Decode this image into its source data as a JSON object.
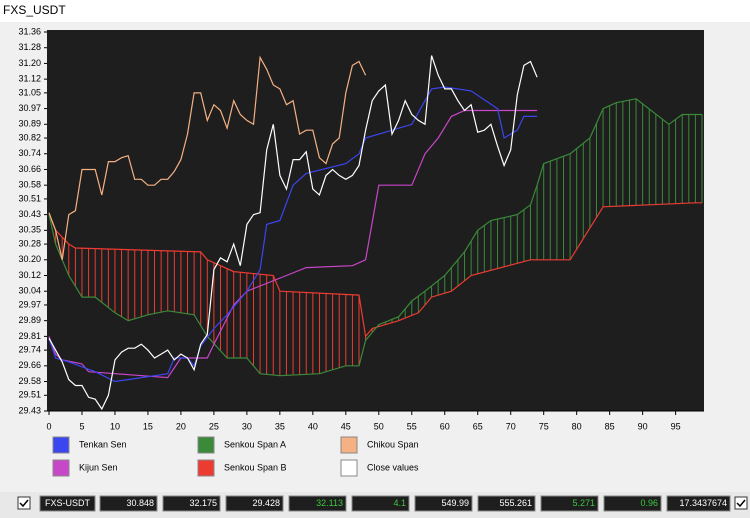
{
  "title": "FXS_USDT",
  "chart_data": {
    "type": "line",
    "ylim": [
      29.43,
      31.36
    ],
    "yticks": [
      {
        "value": 29.43,
        "label": "29.43"
      },
      {
        "value": 29.51,
        "label": "29.51"
      },
      {
        "value": 29.58,
        "label": "29.58"
      },
      {
        "value": 29.66,
        "label": "29.66"
      },
      {
        "value": 29.74,
        "label": "29.74"
      },
      {
        "value": 29.81,
        "label": "29.81"
      },
      {
        "value": 29.89,
        "label": "29.89"
      },
      {
        "value": 29.97,
        "label": "29.97"
      },
      {
        "value": 30.04,
        "label": "30.04"
      },
      {
        "value": 30.12,
        "label": "30.12"
      },
      {
        "value": 30.2,
        "label": "30.20"
      },
      {
        "value": 30.28,
        "label": "30.28"
      },
      {
        "value": 30.35,
        "label": "30.35"
      },
      {
        "value": 30.43,
        "label": "30.43"
      },
      {
        "value": 30.51,
        "label": "30.51"
      },
      {
        "value": 30.58,
        "label": "30.58"
      },
      {
        "value": 30.66,
        "label": "30.66"
      },
      {
        "value": 30.74,
        "label": "30.74"
      },
      {
        "value": 30.82,
        "label": "30.82"
      },
      {
        "value": 30.89,
        "label": "30.89"
      },
      {
        "value": 30.97,
        "label": "30.97"
      },
      {
        "value": 31.05,
        "label": "31.05"
      },
      {
        "value": 31.12,
        "label": "31.12"
      },
      {
        "value": 31.2,
        "label": "31.20"
      },
      {
        "value": 31.28,
        "label": "31.28"
      },
      {
        "value": 31.36,
        "label": "31.36"
      }
    ],
    "xlim": [
      0,
      99
    ],
    "xticks": [
      0,
      5,
      10,
      15,
      20,
      25,
      30,
      35,
      40,
      45,
      50,
      55,
      60,
      65,
      70,
      75,
      80,
      85,
      90,
      95
    ],
    "series": [
      {
        "name": "Tenkan Sen",
        "color": "#3a46f0",
        "x": [
          0,
          1,
          3,
          7,
          10,
          12,
          18,
          19,
          21,
          22,
          23,
          25,
          27,
          30,
          32,
          33,
          35,
          37,
          39,
          45,
          47,
          48,
          52,
          55,
          58,
          60,
          64,
          68,
          69,
          71,
          72,
          74
        ],
        "values": [
          29.8,
          29.7,
          29.68,
          29.63,
          29.58,
          29.59,
          29.62,
          29.7,
          29.7,
          29.66,
          29.76,
          29.85,
          29.92,
          30.04,
          30.15,
          30.38,
          30.4,
          30.58,
          30.64,
          30.69,
          30.74,
          30.82,
          30.86,
          30.89,
          31.07,
          31.08,
          31.06,
          30.97,
          30.82,
          30.86,
          30.93,
          30.93
        ]
      },
      {
        "name": "Kijun Sen",
        "color": "#c846c8",
        "x": [
          0,
          1,
          2,
          5,
          6,
          18,
          20,
          24,
          25,
          28,
          30,
          36,
          39,
          46,
          48,
          50,
          55,
          57,
          59,
          61,
          63,
          74
        ],
        "values": [
          29.81,
          29.72,
          29.69,
          29.67,
          29.63,
          29.6,
          29.7,
          29.7,
          29.77,
          29.97,
          30.04,
          30.12,
          30.16,
          30.17,
          30.2,
          30.58,
          30.58,
          30.74,
          30.82,
          30.93,
          30.96,
          30.96
        ]
      },
      {
        "name": "Senkou Span A",
        "color": "#3a8a3a",
        "x": [
          0,
          1,
          2,
          3,
          5,
          7,
          10,
          12,
          15,
          18,
          22,
          24,
          27,
          30,
          32,
          35,
          41,
          45,
          47,
          48,
          49,
          50,
          53,
          55,
          57,
          60,
          63,
          65,
          67,
          71,
          73,
          74,
          75,
          79,
          82,
          84,
          86,
          89,
          94,
          96,
          99
        ],
        "values": [
          30.43,
          30.28,
          30.2,
          30.12,
          30.01,
          30.01,
          29.93,
          29.89,
          29.92,
          29.94,
          29.92,
          29.81,
          29.7,
          29.7,
          29.62,
          29.61,
          29.62,
          29.66,
          29.66,
          29.79,
          29.83,
          29.87,
          29.91,
          29.99,
          30.04,
          30.12,
          30.24,
          30.35,
          30.4,
          30.43,
          30.48,
          30.58,
          30.69,
          30.74,
          30.82,
          30.97,
          31.0,
          31.02,
          30.89,
          30.94,
          30.94
        ]
      },
      {
        "name": "Senkou Span B",
        "color": "#ee3b32",
        "x": [
          0,
          1,
          3,
          4,
          23,
          24,
          28,
          34,
          35,
          47,
          48,
          49,
          53,
          56,
          58,
          61,
          64,
          73,
          79,
          84,
          98,
          99
        ],
        "values": [
          30.43,
          30.35,
          30.28,
          30.26,
          30.24,
          30.2,
          30.14,
          30.12,
          30.04,
          30.02,
          29.81,
          29.85,
          29.89,
          29.93,
          30.01,
          30.04,
          30.12,
          30.2,
          30.2,
          30.47,
          30.49,
          30.49
        ]
      },
      {
        "name": "Chikou Span",
        "color": "#f4b183",
        "x": [
          0,
          1,
          2,
          3,
          4,
          5,
          6,
          7,
          8,
          9,
          10,
          11,
          12,
          13,
          14,
          15,
          16,
          17,
          18,
          19,
          20,
          21,
          22,
          23,
          24,
          25,
          26,
          27,
          28,
          29,
          30,
          31,
          32,
          33,
          34,
          35,
          36,
          37,
          38,
          39,
          40,
          41,
          42,
          43,
          44,
          45,
          46,
          47,
          48
        ],
        "values": [
          30.44,
          30.35,
          30.2,
          30.43,
          30.45,
          30.66,
          30.66,
          30.66,
          30.53,
          30.7,
          30.7,
          30.72,
          30.73,
          30.61,
          30.61,
          30.58,
          30.58,
          30.61,
          30.61,
          30.65,
          30.71,
          30.84,
          31.05,
          31.05,
          30.91,
          30.99,
          30.96,
          30.87,
          31.01,
          30.94,
          30.91,
          30.89,
          31.23,
          31.17,
          31.09,
          31.07,
          30.99,
          31.01,
          30.84,
          30.86,
          30.86,
          30.72,
          30.69,
          30.79,
          30.82,
          31.05,
          31.19,
          31.21,
          31.14
        ]
      },
      {
        "name": "Close values",
        "color": "#ffffff",
        "x": [
          0,
          1,
          2,
          3,
          4,
          5,
          6,
          7,
          8,
          9,
          10,
          11,
          12,
          13,
          14,
          15,
          16,
          17,
          18,
          19,
          20,
          21,
          22,
          23,
          24,
          25,
          26,
          27,
          28,
          29,
          30,
          31,
          32,
          33,
          34,
          35,
          36,
          37,
          38,
          39,
          40,
          41,
          42,
          43,
          44,
          45,
          46,
          47,
          48,
          49,
          50,
          51,
          52,
          53,
          54,
          55,
          56,
          57,
          58,
          59,
          60,
          61,
          62,
          63,
          64,
          65,
          66,
          67,
          68,
          69,
          70,
          71,
          72,
          73,
          74
        ],
        "values": [
          29.8,
          29.74,
          29.68,
          29.59,
          29.56,
          29.56,
          29.5,
          29.49,
          29.44,
          29.51,
          29.69,
          29.73,
          29.75,
          29.75,
          29.77,
          29.74,
          29.7,
          29.72,
          29.74,
          29.69,
          29.72,
          29.7,
          29.64,
          29.77,
          29.82,
          30.15,
          30.21,
          30.19,
          30.28,
          30.17,
          30.38,
          30.43,
          30.44,
          30.76,
          30.89,
          30.63,
          30.56,
          30.71,
          30.71,
          30.75,
          30.56,
          30.53,
          30.63,
          30.66,
          30.63,
          30.61,
          30.63,
          30.68,
          30.86,
          31.01,
          31.06,
          31.09,
          30.84,
          30.91,
          31.01,
          30.94,
          30.91,
          30.89,
          31.24,
          31.14,
          31.07,
          31.07,
          31.01,
          30.96,
          30.99,
          30.85,
          30.86,
          30.89,
          30.78,
          30.68,
          30.76,
          31.04,
          31.19,
          31.21,
          31.13
        ]
      }
    ]
  },
  "status_bar": {
    "symbol": "FXS-USDT",
    "fields": [
      "30.848",
      "32.175",
      "29.428",
      "32.113",
      "4.1",
      "549.99",
      "555.261",
      "5.271",
      "0.96",
      "17.3437674"
    ]
  }
}
